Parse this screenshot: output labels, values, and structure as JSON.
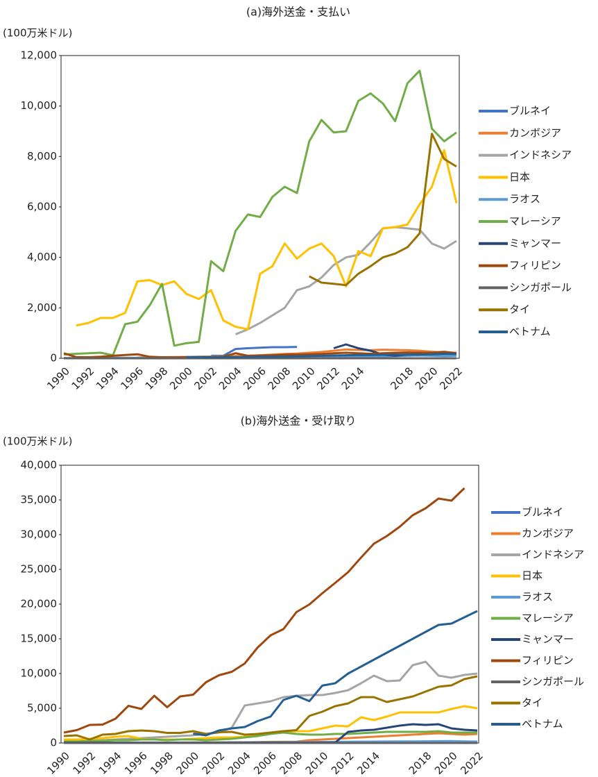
{
  "chart_data": [
    {
      "type": "line",
      "title": "(a)海外送金・支払い",
      "y_label": "(100万米ドル)",
      "legend": "right",
      "grid": false,
      "categories": [
        "1990",
        null,
        "1992",
        null,
        "1994",
        null,
        "1996",
        null,
        "1998",
        null,
        "2000",
        null,
        "2002",
        null,
        "2004",
        null,
        "2006",
        null,
        "2008",
        null,
        "2010",
        null,
        "2012",
        null,
        "2014",
        null,
        null,
        null,
        "2018",
        null,
        "2020",
        null,
        "2022"
      ],
      "ylim": [
        0,
        12000
      ],
      "yticks": [
        0,
        {
          "value": 2000,
          "label": "2,000"
        },
        {
          "value": 4000,
          "label": "4,000"
        },
        {
          "value": 6000,
          "label": "6,000"
        },
        {
          "value": 8000,
          "label": "8,000"
        },
        {
          "value": 10000,
          "label": "10,000"
        },
        {
          "value": 12000,
          "label": "12,000"
        }
      ],
      "series": [
        {
          "name": "ブルネイ",
          "color": "#4472c4",
          "values": [
            null,
            null,
            null,
            null,
            null,
            null,
            null,
            null,
            null,
            null,
            null,
            null,
            100,
            100,
            370,
            400,
            420,
            440,
            440,
            450,
            null,
            null,
            null,
            null,
            null,
            null,
            null,
            null,
            null,
            null,
            null,
            null,
            null
          ]
        },
        {
          "name": "カンボジア",
          "color": "#ed7d31",
          "values": [
            null,
            null,
            null,
            null,
            null,
            null,
            30,
            40,
            40,
            50,
            50,
            60,
            70,
            80,
            90,
            100,
            120,
            150,
            170,
            190,
            220,
            250,
            300,
            350,
            330,
            320,
            340,
            330,
            320,
            300,
            260,
            230,
            220
          ]
        },
        {
          "name": "インドネシア",
          "color": "#a5a5a5",
          "values": [
            null,
            null,
            null,
            null,
            null,
            null,
            null,
            null,
            null,
            null,
            null,
            null,
            null,
            null,
            950,
            1150,
            1400,
            1700,
            2000,
            2700,
            2850,
            3200,
            3700,
            4000,
            4100,
            4600,
            5150,
            5200,
            5150,
            5100,
            4550,
            4350,
            4650
          ]
        },
        {
          "name": "日本",
          "color": "#ffc000",
          "values": [
            null,
            1300,
            1400,
            1600,
            1600,
            1800,
            3050,
            3100,
            2900,
            3050,
            2550,
            2350,
            2700,
            1500,
            1250,
            1150,
            3350,
            3650,
            4550,
            3950,
            4350,
            4550,
            4050,
            2850,
            4250,
            4050,
            5150,
            5200,
            5300,
            6100,
            6800,
            8250,
            6150
          ]
        },
        {
          "name": "ラオス",
          "color": "#5b9bd5",
          "values": [
            10,
            10,
            10,
            10,
            20,
            20,
            20,
            20,
            20,
            20,
            20,
            20,
            20,
            30,
            30,
            30,
            30,
            40,
            40,
            40,
            50,
            50,
            60,
            60,
            70,
            80,
            80,
            90,
            100,
            110,
            100,
            90,
            100
          ]
        },
        {
          "name": "マレーシア",
          "color": "#70ad47",
          "values": [
            150,
            180,
            200,
            220,
            120,
            1350,
            1450,
            2100,
            2950,
            500,
            600,
            650,
            3850,
            3450,
            5050,
            5700,
            5600,
            6400,
            6800,
            6550,
            8600,
            9450,
            8950,
            9000,
            10200,
            10500,
            10100,
            9400,
            10900,
            11400,
            9100,
            8600,
            8950
          ]
        },
        {
          "name": "ミャンマー",
          "color": "#264478",
          "values": [
            null,
            null,
            null,
            null,
            null,
            null,
            null,
            null,
            null,
            null,
            null,
            null,
            null,
            null,
            null,
            null,
            null,
            null,
            null,
            null,
            null,
            null,
            400,
            550,
            400,
            300,
            150,
            100,
            150,
            150,
            200,
            200,
            200
          ]
        },
        {
          "name": "フィリピン",
          "color": "#9e480e",
          "values": [
            200,
            50,
            40,
            60,
            100,
            130,
            160,
            60,
            40,
            40,
            50,
            50,
            40,
            60,
            200,
            100,
            110,
            120,
            150,
            150,
            160,
            170,
            200,
            220,
            200,
            180,
            200,
            220,
            230,
            220,
            220,
            260,
            200
          ]
        },
        {
          "name": "シンガポール",
          "color": "#636363",
          "values": [
            0,
            0,
            0,
            0,
            0,
            0,
            0,
            0,
            0,
            0,
            0,
            0,
            0,
            0,
            0,
            0,
            0,
            0,
            0,
            0,
            0,
            0,
            0,
            0,
            0,
            0,
            0,
            0,
            0,
            0,
            0,
            0,
            0
          ]
        },
        {
          "name": "タイ",
          "color": "#997300",
          "values": [
            null,
            null,
            null,
            null,
            null,
            null,
            null,
            null,
            null,
            null,
            null,
            null,
            null,
            null,
            null,
            null,
            null,
            null,
            null,
            null,
            3250,
            3000,
            2950,
            2900,
            3350,
            3650,
            4000,
            4150,
            4400,
            4950,
            8900,
            7900,
            7600
          ]
        },
        {
          "name": "ベトナム",
          "color": "#255e91",
          "values": [
            null,
            null,
            null,
            null,
            null,
            null,
            null,
            null,
            null,
            null,
            50,
            50,
            50,
            50,
            50,
            50,
            60,
            60,
            70,
            80,
            90,
            100,
            110,
            120,
            130,
            130,
            140,
            140,
            150,
            150,
            160,
            170,
            170
          ]
        }
      ]
    },
    {
      "type": "line",
      "title": "(b)海外送金・受け取り",
      "y_label": "(100万米ドル)",
      "legend": "right",
      "grid": false,
      "categories": [
        "1990",
        null,
        "1992",
        null,
        "1994",
        null,
        "1996",
        null,
        "1998",
        null,
        "2000",
        null,
        "2002",
        null,
        "2004",
        null,
        "2006",
        null,
        "2008",
        null,
        "2010",
        null,
        "2012",
        null,
        "2014",
        null,
        null,
        null,
        "2018",
        null,
        "2020",
        null,
        "2022"
      ],
      "ylim": [
        0,
        40000
      ],
      "yticks": [
        0,
        {
          "value": 5000,
          "label": "5,000"
        },
        {
          "value": 10000,
          "label": "10,000"
        },
        {
          "value": 15000,
          "label": "15,000"
        },
        {
          "value": 20000,
          "label": "20,000"
        },
        {
          "value": 25000,
          "label": "25,000"
        },
        {
          "value": 30000,
          "label": "30,000"
        },
        {
          "value": 35000,
          "label": "35,000"
        },
        {
          "value": 40000,
          "label": "40,000"
        }
      ],
      "series": [
        {
          "name": "ブルネイ",
          "color": "#4472c4",
          "values": [
            0,
            0,
            0,
            0,
            0,
            0,
            0,
            0,
            0,
            0,
            0,
            0,
            0,
            0,
            0,
            0,
            0,
            0,
            0,
            0,
            0,
            0,
            0,
            0,
            0,
            0,
            0,
            0,
            0,
            0,
            0,
            0,
            0
          ]
        },
        {
          "name": "カンボジア",
          "color": "#ed7d31",
          "values": [
            10,
            10,
            10,
            10,
            20,
            20,
            30,
            30,
            40,
            50,
            60,
            70,
            80,
            90,
            100,
            130,
            160,
            180,
            190,
            400,
            500,
            600,
            700,
            800,
            900,
            1000,
            1100,
            1200,
            1300,
            1400,
            1300,
            1200,
            1300
          ]
        },
        {
          "name": "インドネシア",
          "color": "#a5a5a5",
          "values": [
            200,
            300,
            300,
            400,
            500,
            600,
            700,
            800,
            900,
            1000,
            1100,
            1300,
            1500,
            2200,
            5400,
            5700,
            6000,
            6600,
            6800,
            6900,
            6900,
            7200,
            7600,
            8600,
            9700,
            8900,
            9000,
            11200,
            11700,
            9700,
            9400,
            9800,
            10000
          ]
        },
        {
          "name": "日本",
          "color": "#ffc000",
          "values": [
            500,
            500,
            600,
            700,
            900,
            1000,
            600,
            500,
            500,
            500,
            600,
            700,
            800,
            800,
            900,
            1100,
            1400,
            1600,
            1700,
            1700,
            2100,
            2500,
            2400,
            3700,
            3300,
            3800,
            4400,
            4400,
            4400,
            4400,
            4900,
            5300,
            5000
          ]
        },
        {
          "name": "ラオス",
          "color": "#5b9bd5",
          "values": [
            10,
            10,
            10,
            10,
            20,
            20,
            20,
            30,
            30,
            40,
            50,
            60,
            70,
            80,
            90,
            100,
            100,
            110,
            120,
            130,
            150,
            160,
            180,
            190,
            200,
            210,
            220,
            230,
            240,
            260,
            280,
            220,
            200
          ]
        },
        {
          "name": "マレーシア",
          "color": "#70ad47",
          "values": [
            200,
            200,
            300,
            300,
            400,
            400,
            500,
            500,
            400,
            500,
            500,
            400,
            500,
            600,
            800,
            1000,
            1300,
            1500,
            1300,
            1200,
            1200,
            1300,
            1300,
            1400,
            1500,
            1600,
            1600,
            1600,
            1600,
            1700,
            1500,
            1500,
            1500
          ]
        },
        {
          "name": "ミャンマー",
          "color": "#264478",
          "values": [
            50,
            50,
            50,
            50,
            50,
            50,
            50,
            50,
            50,
            50,
            50,
            50,
            50,
            50,
            50,
            50,
            50,
            50,
            50,
            50,
            50,
            50,
            1600,
            1800,
            1900,
            2200,
            2500,
            2700,
            2600,
            2700,
            2100,
            1900,
            1800
          ]
        },
        {
          "name": "フィリピン",
          "color": "#9e480e",
          "values": [
            1500,
            1850,
            2600,
            2650,
            3500,
            5350,
            4900,
            6800,
            5150,
            6700,
            6950,
            8750,
            9750,
            10250,
            11450,
            13750,
            15500,
            16400,
            18850,
            19950,
            21550,
            23050,
            24600,
            26700,
            28700,
            29800,
            31150,
            32800,
            33800,
            35200,
            34900,
            36700,
            null
          ]
        },
        {
          "name": "シンガポール",
          "color": "#636363",
          "values": [
            0,
            0,
            0,
            0,
            0,
            0,
            0,
            0,
            0,
            0,
            0,
            0,
            0,
            0,
            0,
            0,
            0,
            0,
            0,
            0,
            0,
            0,
            0,
            0,
            0,
            0,
            0,
            0,
            0,
            0,
            0,
            0,
            0
          ]
        },
        {
          "name": "タイ",
          "color": "#997300",
          "values": [
            1000,
            1100,
            500,
            1200,
            1300,
            1700,
            1800,
            1700,
            1450,
            1450,
            1700,
            1300,
            1550,
            1600,
            1200,
            1300,
            1500,
            1700,
            1850,
            3900,
            4500,
            5300,
            5700,
            6600,
            6600,
            5900,
            6300,
            6700,
            7400,
            8100,
            8300,
            9200,
            9600
          ]
        },
        {
          "name": "ベトナム",
          "color": "#255e91",
          "values": [
            null,
            null,
            null,
            null,
            null,
            null,
            null,
            null,
            null,
            null,
            1340,
            1100,
            1800,
            2100,
            2300,
            3150,
            3800,
            6200,
            6800,
            6020,
            8260,
            8600,
            10000,
            11000,
            12000,
            13000,
            14000,
            15000,
            16000,
            17000,
            17200,
            18100,
            19000
          ]
        }
      ]
    }
  ]
}
